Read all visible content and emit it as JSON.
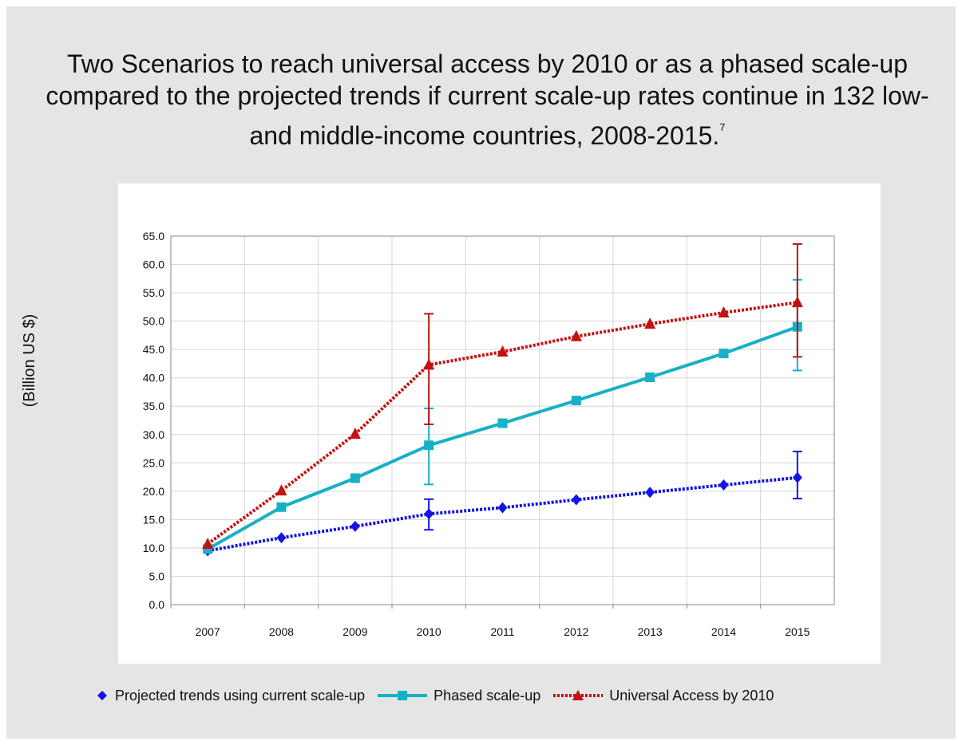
{
  "page": {
    "title_main": "Two Scenarios to reach universal access by 2010 or as a phased scale-up compared to the projected trends if current scale-up rates continue in 132 low- and middle-income countries, 2008-2015.",
    "title_footnote": "7"
  },
  "chart_data": {
    "type": "line",
    "title": "Two Scenarios to reach universal access by 2010 or as a phased scale-up compared to the projected trends if current scale-up rates continue in 132 low- and middle-income countries, 2008-2015.",
    "xlabel": "",
    "ylabel": "(Billion US $)",
    "categories": [
      "2007",
      "2008",
      "2009",
      "2010",
      "2011",
      "2012",
      "2013",
      "2014",
      "2015"
    ],
    "ylim": [
      0,
      65
    ],
    "yticks": [
      "0.0",
      "5.0",
      "10.0",
      "15.0",
      "20.0",
      "25.0",
      "30.0",
      "35.0",
      "40.0",
      "45.0",
      "50.0",
      "55.0",
      "60.0",
      "65.0"
    ],
    "grid": true,
    "legend_position": "bottom",
    "series": [
      {
        "name": "Projected trends using current scale-up",
        "color": "#1414e6",
        "marker": "diamond",
        "dashed": true,
        "values": [
          9.5,
          11.8,
          13.8,
          16.0,
          17.1,
          18.5,
          19.8,
          21.1,
          22.4
        ],
        "error_bars": [
          {
            "x": "2010",
            "low": 13.2,
            "high": 18.6
          },
          {
            "x": "2015",
            "low": 18.7,
            "high": 27.0
          }
        ]
      },
      {
        "name": "Phased scale-up",
        "color": "#17b0c6",
        "marker": "square",
        "dashed": false,
        "values": [
          9.8,
          17.2,
          22.3,
          28.1,
          32.0,
          36.0,
          40.1,
          44.3,
          49.0
        ],
        "error_bars": [
          {
            "x": "2010",
            "low": 21.2,
            "high": 34.6
          },
          {
            "x": "2015",
            "low": 41.3,
            "high": 57.3
          }
        ]
      },
      {
        "name": "Universal Access by 2010",
        "color": "#c41010",
        "marker": "triangle",
        "dashed": true,
        "values": [
          10.7,
          20.1,
          30.1,
          42.3,
          44.6,
          47.3,
          49.5,
          51.5,
          53.3
        ],
        "error_bars": [
          {
            "x": "2010",
            "low": 31.8,
            "high": 51.3
          },
          {
            "x": "2015",
            "low": 43.7,
            "high": 63.6
          }
        ]
      }
    ]
  }
}
